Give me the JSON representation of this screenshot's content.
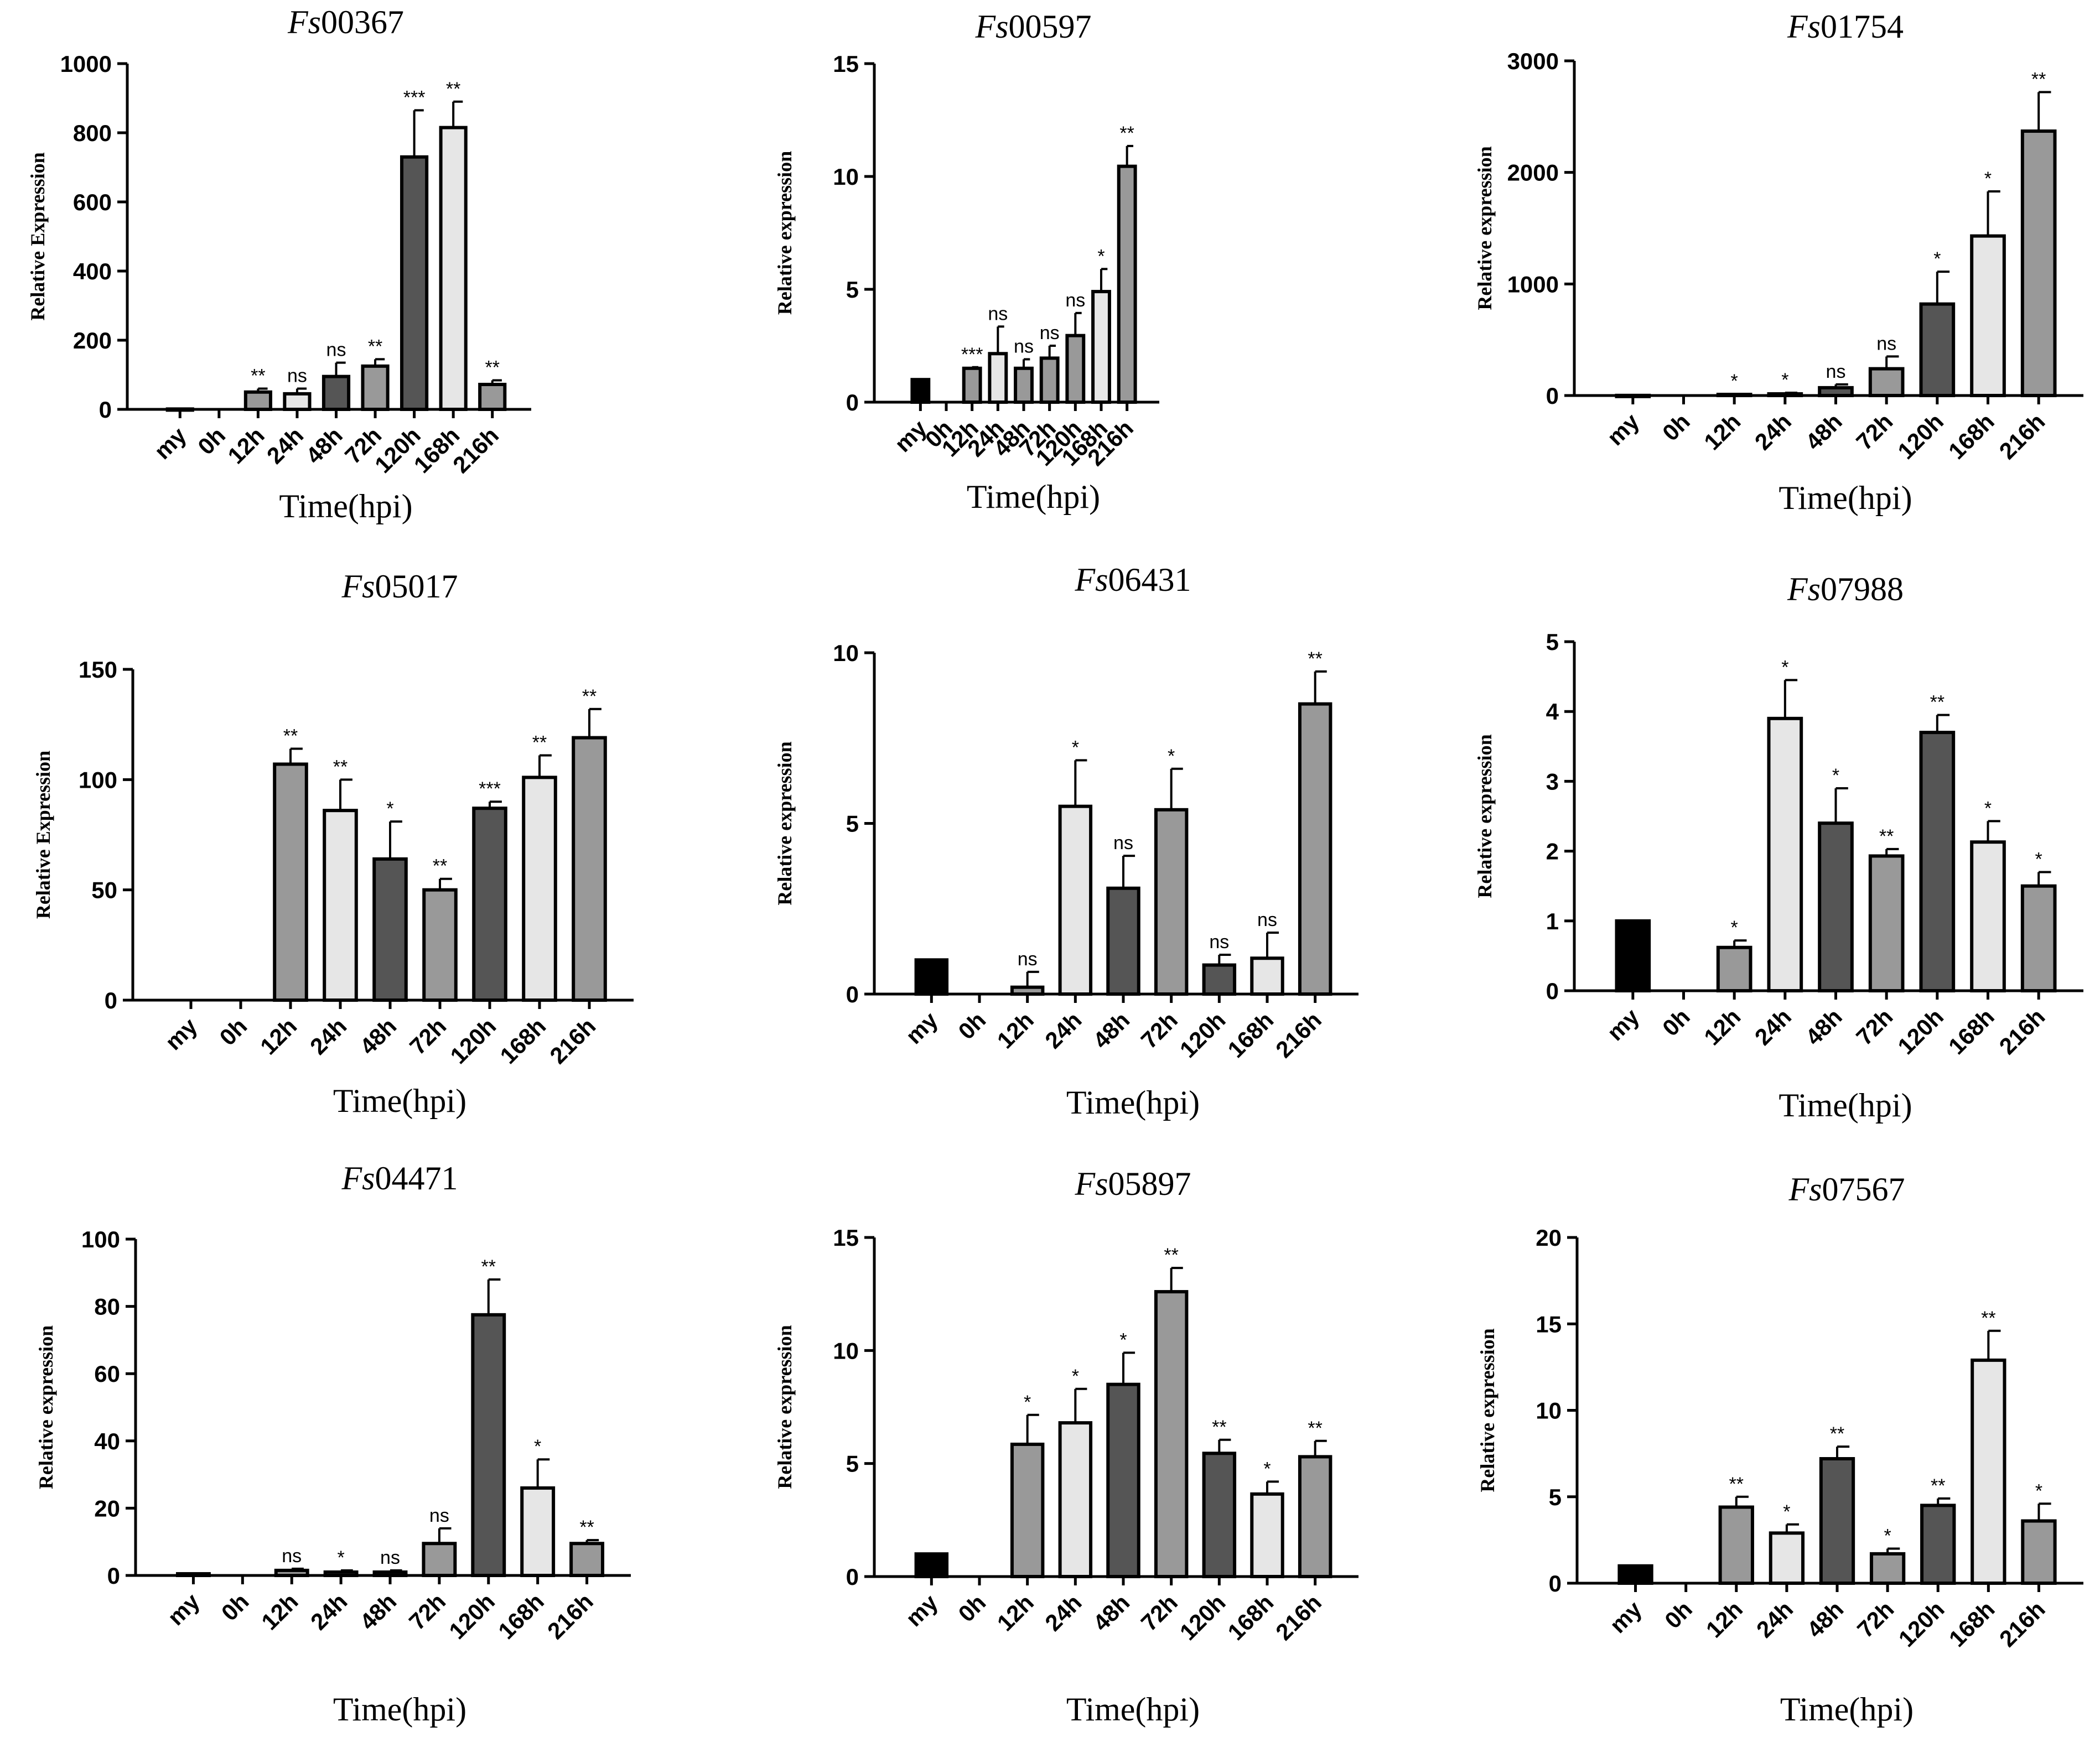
{
  "colors": {
    "black": "#000000",
    "dark": "#555555",
    "mid": "#999999",
    "light": "#e6e6e6",
    "white": "#ffffff"
  },
  "chart_data": [
    {
      "type": "bar",
      "title_prefix": "Fs",
      "title_suffix": "00367",
      "ylabel": "Relative Expression",
      "xlabel": "Time(hpi)",
      "ylim": [
        0,
        1000
      ],
      "yticks": [
        0,
        200,
        400,
        600,
        800,
        1000
      ],
      "categories": [
        "my",
        "0h",
        "12h",
        "24h",
        "48h",
        "72h",
        "120h",
        "168h",
        "216h"
      ],
      "values": [
        1,
        0,
        50,
        45,
        95,
        125,
        730,
        815,
        72
      ],
      "errors": [
        0,
        0,
        10,
        15,
        40,
        20,
        135,
        75,
        12
      ],
      "significance": [
        "",
        "",
        "**",
        "ns",
        "ns",
        "**",
        "***",
        "**",
        "**"
      ],
      "fills": [
        "black",
        "white",
        "mid",
        "light",
        "dark",
        "mid",
        "dark",
        "light",
        "mid"
      ]
    },
    {
      "type": "bar",
      "title_prefix": "Fs",
      "title_suffix": "00597",
      "ylabel": "Relative expression",
      "xlabel": "Time(hpi)",
      "ylim": [
        0,
        15
      ],
      "yticks": [
        0,
        5,
        10,
        15
      ],
      "categories": [
        "my",
        "0h",
        "12h",
        "24h",
        "48h",
        "72h",
        "120h",
        "168h",
        "216h"
      ],
      "values": [
        1,
        0,
        1.5,
        2.15,
        1.5,
        1.95,
        2.95,
        4.9,
        10.45
      ],
      "errors": [
        0,
        0,
        0.05,
        1.2,
        0.4,
        0.55,
        1.0,
        1.0,
        0.9
      ],
      "significance": [
        "",
        "",
        "***",
        "ns",
        "ns",
        "ns",
        "ns",
        "*",
        "**"
      ],
      "fills": [
        "black",
        "white",
        "mid",
        "light",
        "mid",
        "mid",
        "mid",
        "light",
        "mid"
      ]
    },
    {
      "type": "bar",
      "title_prefix": "Fs",
      "title_suffix": "01754",
      "ylabel": "Relative expression",
      "xlabel": "Time(hpi)",
      "ylim": [
        0,
        3000
      ],
      "yticks": [
        0,
        1000,
        2000,
        3000
      ],
      "categories": [
        "my",
        "0h",
        "12h",
        "24h",
        "48h",
        "72h",
        "120h",
        "168h",
        "216h"
      ],
      "values": [
        1,
        0,
        10,
        15,
        70,
        240,
        820,
        1430,
        2370
      ],
      "errors": [
        0,
        0,
        5,
        10,
        30,
        110,
        290,
        400,
        350
      ],
      "significance": [
        "",
        "",
        "*",
        "*",
        "ns",
        "ns",
        "*",
        "*",
        "**"
      ],
      "fills": [
        "black",
        "white",
        "mid",
        "light",
        "dark",
        "mid",
        "dark",
        "light",
        "mid"
      ]
    },
    {
      "type": "bar",
      "title_prefix": "Fs",
      "title_suffix": "05017",
      "ylabel": "Relative Expression",
      "xlabel": "Time(hpi)",
      "ylim": [
        0,
        150
      ],
      "yticks": [
        0,
        50,
        100,
        150
      ],
      "categories": [
        "my",
        "0h",
        "12h",
        "24h",
        "48h",
        "72h",
        "120h",
        "168h",
        "216h"
      ],
      "values": [
        0,
        0,
        107,
        86,
        64,
        50,
        87,
        101,
        119
      ],
      "errors": [
        0,
        0,
        7,
        14,
        17,
        5,
        3,
        10,
        13
      ],
      "significance": [
        "",
        "",
        "**",
        "**",
        "*",
        "**",
        "***",
        "**",
        "**"
      ],
      "fills": [
        "black",
        "white",
        "mid",
        "light",
        "dark",
        "mid",
        "dark",
        "light",
        "mid"
      ]
    },
    {
      "type": "bar",
      "title_prefix": "Fs",
      "title_suffix": "06431",
      "ylabel": "Relative expression",
      "xlabel": "Time(hpi)",
      "ylim": [
        0,
        10
      ],
      "yticks": [
        0,
        5,
        10
      ],
      "categories": [
        "my",
        "0h",
        "12h",
        "24h",
        "48h",
        "72h",
        "120h",
        "168h",
        "216h"
      ],
      "values": [
        1,
        0,
        0.2,
        5.5,
        3.1,
        5.4,
        0.85,
        1.05,
        8.5
      ],
      "errors": [
        0,
        0,
        0.45,
        1.35,
        0.95,
        1.2,
        0.3,
        0.75,
        0.95
      ],
      "significance": [
        "",
        "",
        "ns",
        "*",
        "ns",
        "*",
        "ns",
        "ns",
        "**"
      ],
      "fills": [
        "black",
        "white",
        "mid",
        "light",
        "dark",
        "mid",
        "dark",
        "light",
        "mid"
      ]
    },
    {
      "type": "bar",
      "title_prefix": "Fs",
      "title_suffix": "07988",
      "ylabel": "Relative expression",
      "xlabel": "Time(hpi)",
      "ylim": [
        0,
        5
      ],
      "yticks": [
        0,
        1,
        2,
        3,
        4,
        5
      ],
      "categories": [
        "my",
        "0h",
        "12h",
        "24h",
        "48h",
        "72h",
        "120h",
        "168h",
        "216h"
      ],
      "values": [
        1,
        0,
        0.62,
        3.9,
        2.4,
        1.93,
        3.7,
        2.13,
        1.5
      ],
      "errors": [
        0,
        0,
        0.1,
        0.55,
        0.5,
        0.1,
        0.25,
        0.3,
        0.2
      ],
      "significance": [
        "",
        "",
        "*",
        "*",
        "*",
        "**",
        "**",
        "*",
        "*"
      ],
      "fills": [
        "black",
        "white",
        "mid",
        "light",
        "dark",
        "mid",
        "dark",
        "light",
        "mid"
      ]
    },
    {
      "type": "bar",
      "title_prefix": "Fs",
      "title_suffix": "04471",
      "ylabel": "Relative expression",
      "xlabel": "Time(hpi)",
      "ylim": [
        0,
        100
      ],
      "yticks": [
        0,
        20,
        40,
        60,
        80,
        100
      ],
      "categories": [
        "my",
        "0h",
        "12h",
        "24h",
        "48h",
        "72h",
        "120h",
        "168h",
        "216h"
      ],
      "values": [
        0.5,
        0,
        1.5,
        1.0,
        1.0,
        9.5,
        77.5,
        26,
        9.5
      ],
      "errors": [
        0,
        0,
        0.5,
        0.5,
        0.5,
        4.5,
        10.5,
        8.5,
        1.0
      ],
      "significance": [
        "",
        "",
        "ns",
        "*",
        "ns",
        "ns",
        "**",
        "*",
        "**"
      ],
      "fills": [
        "black",
        "white",
        "mid",
        "light",
        "dark",
        "mid",
        "dark",
        "light",
        "mid"
      ]
    },
    {
      "type": "bar",
      "title_prefix": "Fs",
      "title_suffix": "05897",
      "ylabel": "Relative expression",
      "xlabel": "Time(hpi)",
      "ylim": [
        0,
        15
      ],
      "yticks": [
        0,
        5,
        10,
        15
      ],
      "categories": [
        "my",
        "0h",
        "12h",
        "24h",
        "48h",
        "72h",
        "120h",
        "168h",
        "216h"
      ],
      "values": [
        1,
        0,
        5.85,
        6.8,
        8.5,
        12.6,
        5.45,
        3.65,
        5.3
      ],
      "errors": [
        0,
        0,
        1.3,
        1.5,
        1.4,
        1.05,
        0.6,
        0.55,
        0.7
      ],
      "significance": [
        "",
        "",
        "*",
        "*",
        "*",
        "**",
        "**",
        "*",
        "**"
      ],
      "fills": [
        "black",
        "white",
        "mid",
        "light",
        "dark",
        "mid",
        "dark",
        "light",
        "mid"
      ]
    },
    {
      "type": "bar",
      "title_prefix": "Fs",
      "title_suffix": "07567",
      "ylabel": "Relative expression",
      "xlabel": "Time(hpi)",
      "ylim": [
        0,
        20
      ],
      "yticks": [
        0,
        5,
        10,
        15,
        20
      ],
      "categories": [
        "my",
        "0h",
        "12h",
        "24h",
        "48h",
        "72h",
        "120h",
        "168h",
        "216h"
      ],
      "values": [
        1,
        0,
        4.4,
        2.9,
        7.2,
        1.7,
        4.5,
        12.9,
        3.6
      ],
      "errors": [
        0,
        0,
        0.6,
        0.5,
        0.7,
        0.3,
        0.4,
        1.7,
        1.0
      ],
      "significance": [
        "",
        "",
        "**",
        "*",
        "**",
        "*",
        "**",
        "**",
        "*"
      ],
      "fills": [
        "black",
        "white",
        "mid",
        "light",
        "dark",
        "mid",
        "dark",
        "light",
        "mid"
      ]
    }
  ]
}
